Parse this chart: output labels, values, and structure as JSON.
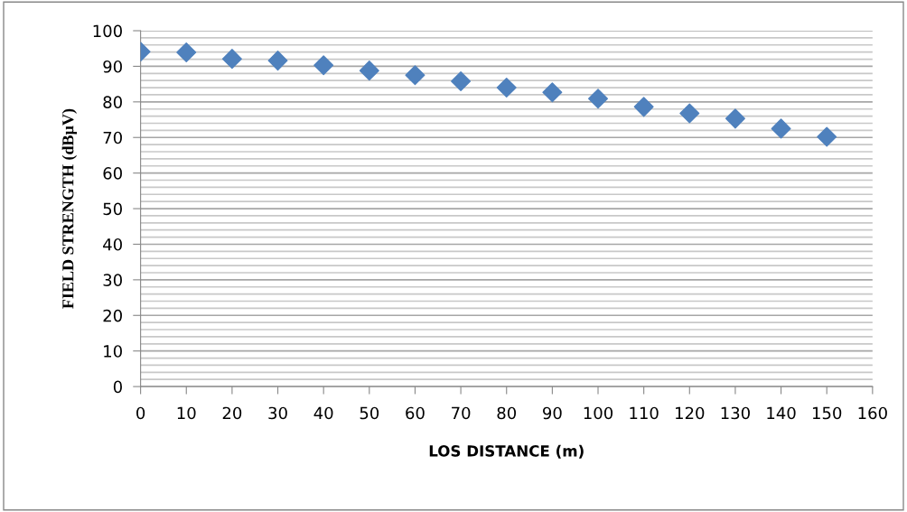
{
  "chart_data": {
    "type": "scatter",
    "xlabel": "LOS DISTANCE (m)",
    "ylabel": "FIELD STRENGTH (dBµV)",
    "x": [
      0,
      10,
      20,
      30,
      40,
      50,
      60,
      70,
      80,
      90,
      100,
      110,
      120,
      130,
      140,
      150
    ],
    "series": [
      {
        "color": "#4f81bd",
        "values": [
          94.1,
          93.9,
          92.1,
          91.6,
          90.3,
          88.8,
          87.5,
          85.8,
          84.0,
          82.7,
          80.9,
          78.6,
          76.8,
          75.3,
          72.5,
          70.2
        ]
      }
    ],
    "xlim": [
      0,
      160
    ],
    "xticks": [
      0,
      10,
      20,
      30,
      40,
      50,
      60,
      70,
      80,
      90,
      100,
      110,
      120,
      130,
      140,
      150,
      160
    ],
    "ylim": [
      0,
      100
    ],
    "yticks": [
      0,
      10,
      20,
      30,
      40,
      50,
      60,
      70,
      80,
      90,
      100
    ],
    "grid": "y",
    "marker": "diamond",
    "legend": false
  }
}
